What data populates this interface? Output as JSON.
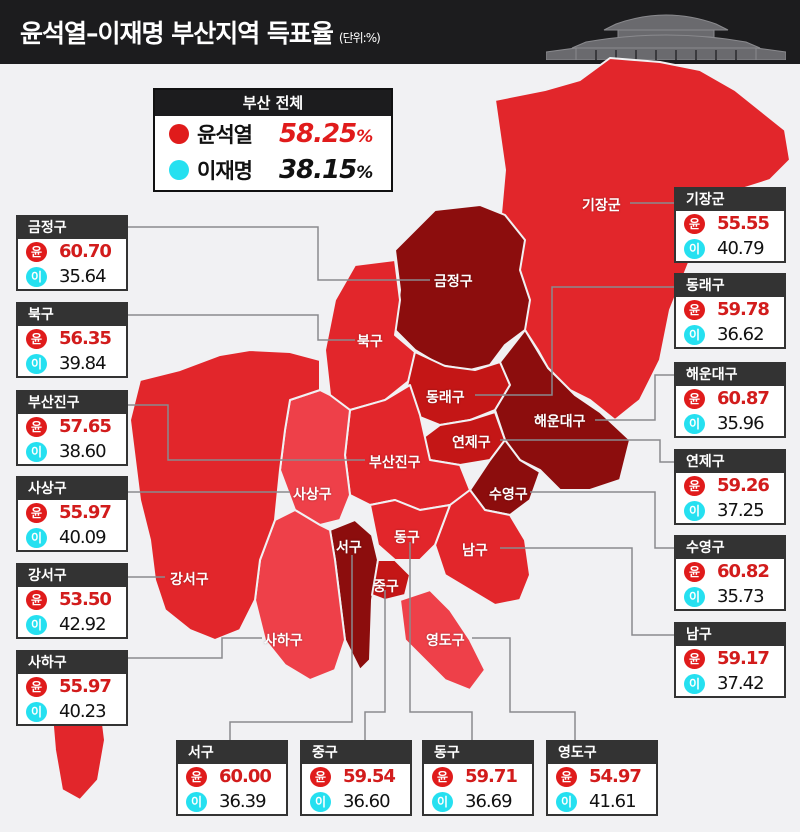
{
  "header": {
    "title": "윤석열–이재명 부산지역 득표율",
    "unit": "(단위:%)"
  },
  "legend": {
    "title": "부산 전체",
    "yoon": {
      "name": "윤석열",
      "value": "58.25",
      "pct": "%"
    },
    "lee": {
      "name": "이재명",
      "value": "38.15",
      "pct": "%"
    }
  },
  "badge": {
    "yoon": "윤",
    "lee": "이"
  },
  "colors": {
    "yoon": "#e01b1b",
    "lee": "#25e0f0",
    "dark": "#8c0d0d",
    "mid": "#c41616",
    "base": "#e2262b",
    "light": "#ee4049"
  },
  "districts": [
    {
      "key": "gijang",
      "name": "기장군",
      "yoon": "55.55",
      "lee": "40.79"
    },
    {
      "key": "geumjeong",
      "name": "금정구",
      "yoon": "60.70",
      "lee": "35.64"
    },
    {
      "key": "dongnae",
      "name": "동래구",
      "yoon": "59.78",
      "lee": "36.62"
    },
    {
      "key": "buk",
      "name": "북구",
      "yoon": "56.35",
      "lee": "39.84"
    },
    {
      "key": "haeundae",
      "name": "해운대구",
      "yoon": "60.87",
      "lee": "35.96"
    },
    {
      "key": "busanjin",
      "name": "부산진구",
      "yoon": "57.65",
      "lee": "38.60"
    },
    {
      "key": "yeonje",
      "name": "연제구",
      "yoon": "59.26",
      "lee": "37.25"
    },
    {
      "key": "sasang",
      "name": "사상구",
      "yoon": "55.97",
      "lee": "40.09"
    },
    {
      "key": "suyeong",
      "name": "수영구",
      "yoon": "60.82",
      "lee": "35.73"
    },
    {
      "key": "gangseo",
      "name": "강서구",
      "yoon": "53.50",
      "lee": "42.92"
    },
    {
      "key": "nam",
      "name": "남구",
      "yoon": "59.17",
      "lee": "37.42"
    },
    {
      "key": "saha",
      "name": "사하구",
      "yoon": "55.97",
      "lee": "40.23"
    },
    {
      "key": "seo",
      "name": "서구",
      "yoon": "60.00",
      "lee": "36.39"
    },
    {
      "key": "jung",
      "name": "중구",
      "yoon": "59.54",
      "lee": "36.60"
    },
    {
      "key": "dong",
      "name": "동구",
      "yoon": "59.71",
      "lee": "36.69"
    },
    {
      "key": "yeongdo",
      "name": "영도구",
      "yoon": "54.97",
      "lee": "41.61"
    }
  ]
}
